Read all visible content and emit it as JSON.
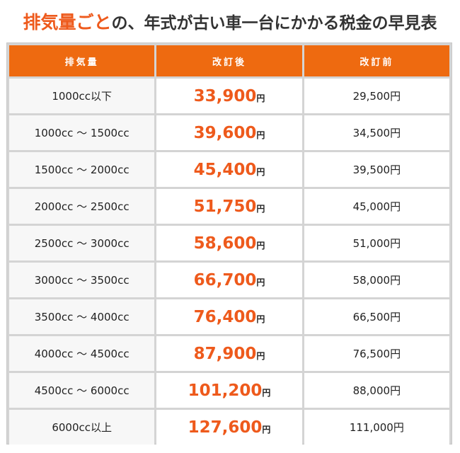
{
  "title": {
    "highlight": "排気量ごと",
    "rest": "の、年式が古い車一台にかかる税金の早見表"
  },
  "table": {
    "headers": [
      "排気量",
      "改訂後",
      "改訂前"
    ],
    "unit": "円",
    "rows": [
      {
        "displacement": "1000cc以下",
        "after": "33,900",
        "before": "29,500円"
      },
      {
        "displacement": "1000cc ～ 1500cc",
        "after": "39,600",
        "before": "34,500円"
      },
      {
        "displacement": "1500cc ～ 2000cc",
        "after": "45,400",
        "before": "39,500円"
      },
      {
        "displacement": "2000cc ～ 2500cc",
        "after": "51,750",
        "before": "45,000円"
      },
      {
        "displacement": "2500cc ～ 3000cc",
        "after": "58,600",
        "before": "51,000円"
      },
      {
        "displacement": "3000cc ～ 3500cc",
        "after": "66,700",
        "before": "58,000円"
      },
      {
        "displacement": "3500cc ～ 4000cc",
        "after": "76,400",
        "before": "66,500円"
      },
      {
        "displacement": "4000cc ～ 4500cc",
        "after": "87,900",
        "before": "76,500円"
      },
      {
        "displacement": "4500cc ～ 6000cc",
        "after": "101,200",
        "before": "88,000円"
      },
      {
        "displacement": "6000cc以上",
        "after": "127,600",
        "before": "111,000円"
      }
    ]
  }
}
